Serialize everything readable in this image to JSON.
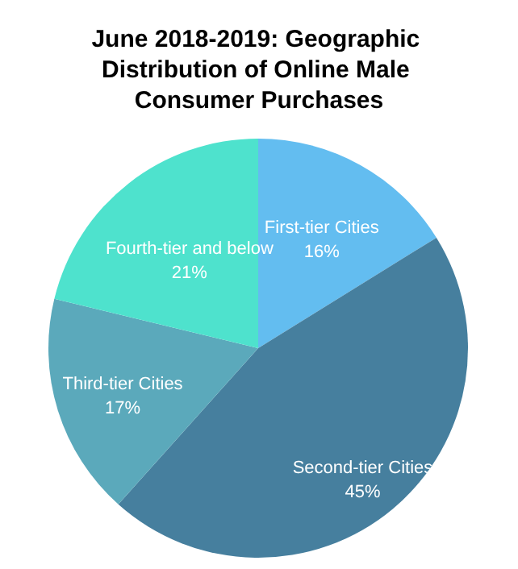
{
  "chart_data": {
    "type": "pie",
    "title": "June 2018-2019: Geographic Distribution of Online Male Consumer Purchases",
    "categories": [
      "First-tier Cities",
      "Second-tier Cities",
      "Third-tier Cities",
      "Fourth-tier and below"
    ],
    "values": [
      16,
      45,
      17,
      21
    ],
    "colors": [
      "#63bdf0",
      "#467f9e",
      "#5ba9bb",
      "#4ee2cd"
    ],
    "value_labels": [
      "16%",
      "45%",
      "17%",
      "21%"
    ],
    "legend": false
  }
}
